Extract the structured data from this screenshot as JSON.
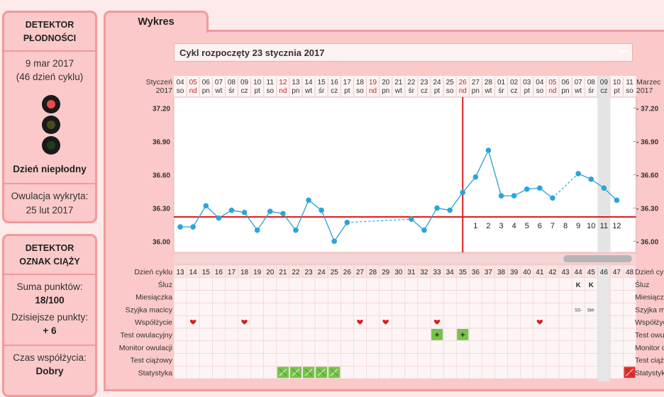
{
  "fertility_panel": {
    "title_line1": "DETEKTOR",
    "title_line2": "PŁODNOŚCI",
    "date": "9 mar 2017",
    "cycle_day": "(46 dzień cyklu)",
    "status": "Dzień niepłodny",
    "ovulation_label": "Owulacja wykryta:",
    "ovulation_date": "25 lut 2017",
    "traffic_light_active": "red"
  },
  "pregnancy_panel": {
    "title_line1": "DETEKTOR",
    "title_line2": "OZNAK CIĄŻY",
    "points_label": "Suma punktów:",
    "points_value": "18/100",
    "today_label": "Dzisiejsze punkty:",
    "today_value": "+ 6",
    "time_label": "Czas współżycia:",
    "time_value": "Dobry"
  },
  "tab": {
    "label": "Wykres"
  },
  "cycle_select": {
    "value": "Cykl rozpoczęty 23 stycznia 2017"
  },
  "chart_data": {
    "type": "line",
    "month_left": [
      "Styczeń",
      "2017"
    ],
    "month_right": [
      "Marzec",
      "2017"
    ],
    "day_nums": [
      "04",
      "05",
      "06",
      "07",
      "08",
      "09",
      "10",
      "11",
      "12",
      "13",
      "14",
      "15",
      "16",
      "17",
      "18",
      "19",
      "20",
      "21",
      "22",
      "23",
      "24",
      "25",
      "26",
      "27",
      "28",
      "01",
      "02",
      "03",
      "04",
      "05",
      "06",
      "07",
      "08",
      "09",
      "10",
      "11"
    ],
    "day_names": [
      "so",
      "nd",
      "pn",
      "wt",
      "śr",
      "cz",
      "pt",
      "so",
      "nd",
      "pn",
      "wt",
      "śr",
      "cz",
      "pt",
      "so",
      "nd",
      "pn",
      "wt",
      "śr",
      "cz",
      "pt",
      "so",
      "nd",
      "pn",
      "wt",
      "śr",
      "cz",
      "pt",
      "so",
      "nd",
      "pn",
      "wt",
      "śr",
      "cz",
      "pt",
      "so"
    ],
    "red_days": [
      1,
      8,
      15,
      22,
      29
    ],
    "today_index": 33,
    "cycle_days": [
      "13",
      "14",
      "15",
      "16",
      "17",
      "18",
      "19",
      "20",
      "21",
      "22",
      "23",
      "24",
      "25",
      "26",
      "27",
      "28",
      "29",
      "30",
      "31",
      "32",
      "33",
      "34",
      "35",
      "36",
      "37",
      "38",
      "39",
      "40",
      "41",
      "42",
      "43",
      "44",
      "45",
      "46",
      "47",
      "48"
    ],
    "y_ticks": [
      "37.20",
      "36.90",
      "36.60",
      "36.30",
      "36.00"
    ],
    "ylim": [
      35.9,
      37.3
    ],
    "temperatures": [
      36.13,
      36.13,
      36.32,
      36.21,
      36.28,
      36.26,
      36.1,
      36.27,
      36.25,
      36.1,
      36.37,
      36.28,
      36.0,
      36.17,
      null,
      null,
      null,
      null,
      36.2,
      36.1,
      36.3,
      36.28,
      36.44,
      36.58,
      36.82,
      36.41,
      36.41,
      36.47,
      36.48,
      36.39,
      null,
      36.61,
      36.56,
      36.48,
      36.37,
      null
    ],
    "dashed_segments": [
      [
        13,
        18
      ],
      [
        29,
        31
      ]
    ],
    "coverline": 36.22,
    "ovulation_index": 21.5,
    "post_ovulation_labels": [
      "1",
      "2",
      "3",
      "4",
      "5",
      "6",
      "7",
      "8",
      "9",
      "10",
      "11",
      "12"
    ]
  },
  "rows": {
    "labels": [
      "Dzień cyklu",
      "Śluz",
      "Miesiączka",
      "Szyjka macicy",
      "Współżycie",
      "Test owulacyjny",
      "Monitor owulacji",
      "Test ciążowy",
      "Statystyka"
    ],
    "labels_right": [
      "Dzień cyklu",
      "Śluz",
      "Miesiączka",
      "Szyjka macicy",
      "Współżycie",
      "Test owulacyjny",
      "Monitor owulacji",
      "Test ciążowy",
      "Statystyka"
    ],
    "mucus": [
      {
        "index": 31,
        "text": "K"
      },
      {
        "index": 32,
        "text": "K"
      }
    ],
    "cervix": [
      {
        "index": 31,
        "text": "SS-"
      },
      {
        "index": 32,
        "text": "SM-"
      }
    ],
    "intercourse": [
      1,
      5,
      14,
      16,
      20,
      28
    ],
    "ovulation_test": [
      {
        "index": 20,
        "text": "+"
      },
      {
        "index": 22,
        "text": "+"
      }
    ],
    "statistics_green": [
      8,
      9,
      10,
      11,
      12
    ],
    "statistics_red": [
      35
    ]
  },
  "colors": {
    "line": "#2a9fd2",
    "marker": "#2aa6d9",
    "coverline": "#dd1c1c",
    "heart": "#d81f1f",
    "green": "#76c34a",
    "red_stat": "#e23030"
  }
}
